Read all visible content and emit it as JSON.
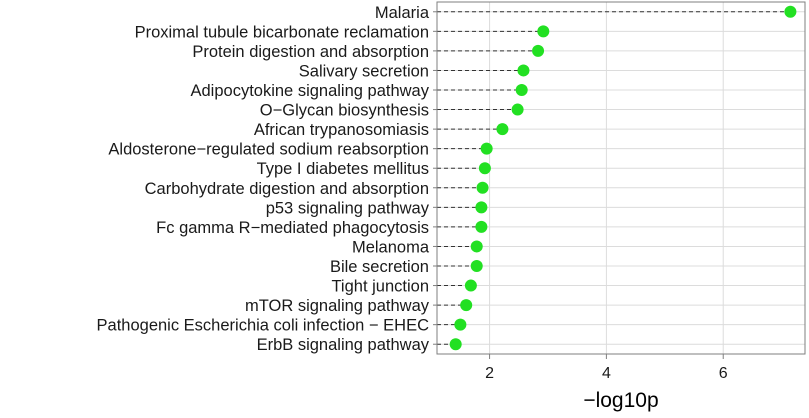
{
  "chart_data": {
    "type": "scatter",
    "xlabel": "−log10p",
    "ylabel": "",
    "xlim": [
      1.1,
      7.4
    ],
    "xticks": [
      2,
      4,
      6
    ],
    "grid": true,
    "categories": [
      "Malaria",
      "Proximal tubule bicarbonate reclamation",
      "Protein digestion and absorption",
      "Salivary secretion",
      "Adipocytokine signaling pathway",
      "O−Glycan biosynthesis",
      "African trypanosomiasis",
      "Aldosterone−regulated sodium reabsorption",
      "Type I diabetes mellitus",
      "Carbohydrate digestion and absorption",
      "p53 signaling pathway",
      "Fc gamma R−mediated phagocytosis",
      "Melanoma",
      "Bile secretion",
      "Tight junction",
      "mTOR signaling pathway",
      "Pathogenic Escherichia coli infection − EHEC",
      "ErbB signaling pathway"
    ],
    "values": [
      7.15,
      2.92,
      2.83,
      2.58,
      2.55,
      2.48,
      2.22,
      1.95,
      1.92,
      1.88,
      1.86,
      1.86,
      1.78,
      1.78,
      1.68,
      1.6,
      1.5,
      1.42
    ],
    "colors": {
      "point": "#22e022",
      "segment": "#333333",
      "grid": "#dcdcdc",
      "frame": "#7f7f7f"
    }
  }
}
